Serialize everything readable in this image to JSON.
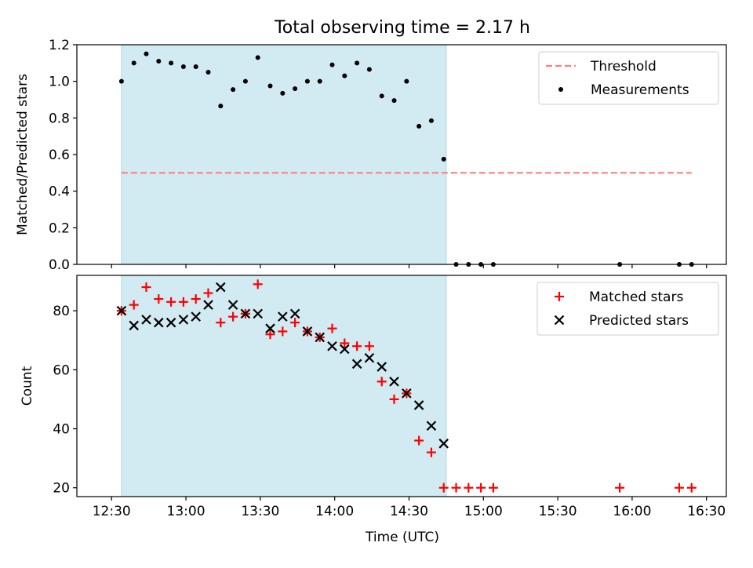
{
  "chart_data": {
    "title": "Total observing time = 2.17 h",
    "xlabel": "Time (UTC)",
    "x_ticks": [
      "12:30",
      "13:00",
      "13:30",
      "14:00",
      "14:30",
      "15:00",
      "15:30",
      "16:00",
      "16:30"
    ],
    "observing_window": {
      "start": "12:34",
      "end": "14:45",
      "color": "#add8e6"
    },
    "panels": [
      {
        "type": "scatter",
        "ylabel": "Matched/Predicted stars",
        "ylim": [
          0,
          1.2
        ],
        "y_ticks": [
          "0.0",
          "0.2",
          "0.4",
          "0.6",
          "0.8",
          "1.0",
          "1.2"
        ],
        "legend_placement": "top-right",
        "series": [
          {
            "name": "Threshold",
            "style": "dashed-line",
            "color": "#ff7f7f",
            "x": [
              "12:34",
              "16:24"
            ],
            "y": [
              0.5,
              0.5
            ]
          },
          {
            "name": "Measurements",
            "style": "dot",
            "color": "#000000",
            "x": [
              "12:34",
              "12:39",
              "12:44",
              "12:49",
              "12:54",
              "12:59",
              "13:04",
              "13:09",
              "13:14",
              "13:19",
              "13:24",
              "13:29",
              "13:34",
              "13:39",
              "13:44",
              "13:49",
              "13:54",
              "13:59",
              "14:04",
              "14:09",
              "14:14",
              "14:19",
              "14:24",
              "14:29",
              "14:34",
              "14:39",
              "14:44",
              "14:49",
              "14:54",
              "14:59",
              "15:04",
              "15:55",
              "16:19",
              "16:24"
            ],
            "y": [
              1.0,
              1.1,
              1.15,
              1.11,
              1.1,
              1.08,
              1.08,
              1.05,
              0.865,
              0.955,
              1.0,
              1.13,
              0.975,
              0.935,
              0.96,
              1.0,
              1.0,
              1.09,
              1.03,
              1.1,
              1.065,
              0.92,
              0.895,
              1.0,
              0.755,
              0.785,
              0.575,
              0,
              0,
              0,
              0,
              0,
              0,
              0
            ]
          }
        ]
      },
      {
        "type": "scatter",
        "ylabel": "Count",
        "ylim": [
          17,
          92
        ],
        "y_ticks": [
          "20",
          "40",
          "60",
          "80"
        ],
        "y_tick_values": [
          20,
          40,
          60,
          80
        ],
        "legend_placement": "top-right",
        "series": [
          {
            "name": "Matched stars",
            "style": "plus",
            "color": "#ff0000",
            "x": [
              "12:34",
              "12:39",
              "12:44",
              "12:49",
              "12:54",
              "12:59",
              "13:04",
              "13:09",
              "13:14",
              "13:19",
              "13:24",
              "13:29",
              "13:34",
              "13:39",
              "13:44",
              "13:49",
              "13:54",
              "13:59",
              "14:04",
              "14:09",
              "14:14",
              "14:19",
              "14:24",
              "14:29",
              "14:34",
              "14:39",
              "14:44",
              "14:49",
              "14:54",
              "14:59",
              "15:04",
              "15:55",
              "16:19",
              "16:24"
            ],
            "y": [
              80,
              82,
              88,
              84,
              83,
              83,
              84,
              86,
              76,
              78,
              79,
              89,
              72,
              73,
              76,
              73,
              71,
              74,
              69,
              68,
              68,
              56,
              50,
              52,
              36,
              32,
              20,
              20,
              20,
              20,
              20,
              20,
              20,
              20
            ]
          },
          {
            "name": "Predicted stars",
            "style": "x",
            "color": "#000000",
            "x": [
              "12:34",
              "12:39",
              "12:44",
              "12:49",
              "12:54",
              "12:59",
              "13:04",
              "13:09",
              "13:14",
              "13:19",
              "13:24",
              "13:29",
              "13:34",
              "13:39",
              "13:44",
              "13:49",
              "13:54",
              "13:59",
              "14:04",
              "14:09",
              "14:14",
              "14:19",
              "14:24",
              "14:29",
              "14:34",
              "14:39",
              "14:44"
            ],
            "y": [
              80,
              75,
              77,
              76,
              76,
              77,
              78,
              82,
              88,
              82,
              79,
              79,
              74,
              78,
              79,
              73,
              71,
              68,
              67,
              62,
              64,
              61,
              56,
              52,
              48,
              41,
              35
            ]
          }
        ]
      }
    ]
  }
}
